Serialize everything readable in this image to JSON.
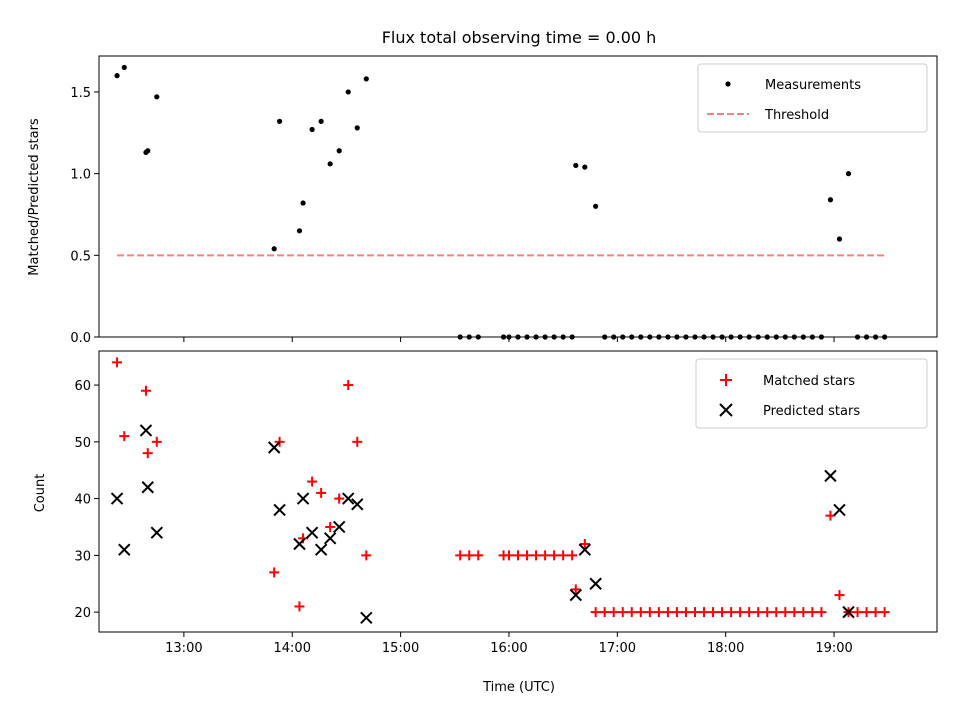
{
  "chart_data": [
    {
      "type": "scatter",
      "title": "Flux total observing time = 0.00 h",
      "xlabel": "",
      "ylabel": "Matched/Predicted stars",
      "xlim": [
        "12:13",
        "19:57"
      ],
      "ylim": [
        0,
        1.72
      ],
      "xticks": [
        "13:00",
        "14:00",
        "15:00",
        "16:00",
        "17:00",
        "18:00",
        "19:00"
      ],
      "yticks": [
        "0.0",
        "0.5",
        "1.0",
        "1.5"
      ],
      "legend": {
        "position": "top-right",
        "entries": [
          "Measurements",
          "Threshold"
        ]
      },
      "colors": {
        "measurements": "#000000",
        "threshold": "#ff7f7f"
      },
      "series": [
        {
          "name": "Measurements",
          "marker": "dot",
          "points": [
            [
              "12:23",
              1.6
            ],
            [
              "12:27",
              1.65
            ],
            [
              "12:39",
              1.13
            ],
            [
              "12:40",
              1.14
            ],
            [
              "12:45",
              1.47
            ],
            [
              "13:50",
              0.54
            ],
            [
              "13:53",
              1.32
            ],
            [
              "14:04",
              0.65
            ],
            [
              "14:06",
              0.82
            ],
            [
              "14:11",
              1.27
            ],
            [
              "14:16",
              1.32
            ],
            [
              "14:21",
              1.06
            ],
            [
              "14:26",
              1.14
            ],
            [
              "14:31",
              1.5
            ],
            [
              "14:36",
              1.28
            ],
            [
              "14:41",
              1.58
            ],
            [
              "15:33",
              0
            ],
            [
              "15:38",
              0
            ],
            [
              "15:43",
              0
            ],
            [
              "15:57",
              0
            ],
            [
              "16:00",
              0
            ],
            [
              "16:05",
              0
            ],
            [
              "16:10",
              0
            ],
            [
              "16:15",
              0
            ],
            [
              "16:20",
              0
            ],
            [
              "16:25",
              0
            ],
            [
              "16:30",
              0
            ],
            [
              "16:35",
              0
            ],
            [
              "16:37",
              1.05
            ],
            [
              "16:42",
              1.04
            ],
            [
              "16:48",
              0.8
            ],
            [
              "16:53",
              0
            ],
            [
              "16:58",
              0
            ],
            [
              "17:03",
              0
            ],
            [
              "17:08",
              0
            ],
            [
              "17:13",
              0
            ],
            [
              "17:18",
              0
            ],
            [
              "17:23",
              0
            ],
            [
              "17:28",
              0
            ],
            [
              "17:33",
              0
            ],
            [
              "17:38",
              0
            ],
            [
              "17:43",
              0
            ],
            [
              "17:48",
              0
            ],
            [
              "17:53",
              0
            ],
            [
              "17:58",
              0
            ],
            [
              "18:03",
              0
            ],
            [
              "18:08",
              0
            ],
            [
              "18:13",
              0
            ],
            [
              "18:18",
              0
            ],
            [
              "18:23",
              0
            ],
            [
              "18:28",
              0
            ],
            [
              "18:33",
              0
            ],
            [
              "18:38",
              0
            ],
            [
              "18:43",
              0
            ],
            [
              "18:48",
              0
            ],
            [
              "18:53",
              0
            ],
            [
              "18:58",
              0.84
            ],
            [
              "19:03",
              0.6
            ],
            [
              "19:08",
              1.0
            ],
            [
              "19:13",
              0
            ],
            [
              "19:18",
              0
            ],
            [
              "19:23",
              0
            ],
            [
              "19:28",
              0
            ]
          ]
        },
        {
          "name": "Threshold",
          "marker": "dashed-line",
          "points": [
            [
              "12:23",
              0.5
            ],
            [
              "19:28",
              0.5
            ]
          ]
        }
      ]
    },
    {
      "type": "scatter",
      "title": "",
      "xlabel": "Time (UTC)",
      "ylabel": "Count",
      "xlim": [
        "12:13",
        "19:57"
      ],
      "ylim": [
        16.5,
        66
      ],
      "xticks": [
        "13:00",
        "14:00",
        "15:00",
        "16:00",
        "17:00",
        "18:00",
        "19:00"
      ],
      "yticks": [
        "20",
        "30",
        "40",
        "50",
        "60"
      ],
      "legend": {
        "position": "top-right",
        "entries": [
          "Matched stars",
          "Predicted stars"
        ]
      },
      "colors": {
        "matched": "#ff0000",
        "predicted": "#000000"
      },
      "series": [
        {
          "name": "Matched stars",
          "marker": "plus",
          "points": [
            [
              "12:23",
              64
            ],
            [
              "12:27",
              51
            ],
            [
              "12:39",
              59
            ],
            [
              "12:40",
              48
            ],
            [
              "12:45",
              50
            ],
            [
              "13:50",
              27
            ],
            [
              "13:53",
              50
            ],
            [
              "14:04",
              21
            ],
            [
              "14:06",
              33
            ],
            [
              "14:11",
              43
            ],
            [
              "14:16",
              41
            ],
            [
              "14:21",
              35
            ],
            [
              "14:26",
              40
            ],
            [
              "14:31",
              60
            ],
            [
              "14:36",
              50
            ],
            [
              "14:41",
              30
            ],
            [
              "15:33",
              30
            ],
            [
              "15:38",
              30
            ],
            [
              "15:43",
              30
            ],
            [
              "15:57",
              30
            ],
            [
              "16:00",
              30
            ],
            [
              "16:05",
              30
            ],
            [
              "16:10",
              30
            ],
            [
              "16:15",
              30
            ],
            [
              "16:20",
              30
            ],
            [
              "16:25",
              30
            ],
            [
              "16:30",
              30
            ],
            [
              "16:35",
              30
            ],
            [
              "16:37",
              24
            ],
            [
              "16:42",
              32
            ],
            [
              "16:48",
              20
            ],
            [
              "16:53",
              20
            ],
            [
              "16:58",
              20
            ],
            [
              "17:03",
              20
            ],
            [
              "17:08",
              20
            ],
            [
              "17:13",
              20
            ],
            [
              "17:18",
              20
            ],
            [
              "17:23",
              20
            ],
            [
              "17:28",
              20
            ],
            [
              "17:33",
              20
            ],
            [
              "17:38",
              20
            ],
            [
              "17:43",
              20
            ],
            [
              "17:48",
              20
            ],
            [
              "17:53",
              20
            ],
            [
              "17:58",
              20
            ],
            [
              "18:03",
              20
            ],
            [
              "18:08",
              20
            ],
            [
              "18:13",
              20
            ],
            [
              "18:18",
              20
            ],
            [
              "18:23",
              20
            ],
            [
              "18:28",
              20
            ],
            [
              "18:33",
              20
            ],
            [
              "18:38",
              20
            ],
            [
              "18:43",
              20
            ],
            [
              "18:48",
              20
            ],
            [
              "18:53",
              20
            ],
            [
              "18:58",
              37
            ],
            [
              "19:03",
              23
            ],
            [
              "19:08",
              20
            ],
            [
              "19:13",
              20
            ],
            [
              "19:18",
              20
            ],
            [
              "19:23",
              20
            ],
            [
              "19:28",
              20
            ]
          ]
        },
        {
          "name": "Predicted stars",
          "marker": "x",
          "points": [
            [
              "12:23",
              40
            ],
            [
              "12:27",
              31
            ],
            [
              "12:39",
              52
            ],
            [
              "12:40",
              42
            ],
            [
              "12:45",
              34
            ],
            [
              "13:50",
              49
            ],
            [
              "13:53",
              38
            ],
            [
              "14:04",
              32
            ],
            [
              "14:06",
              40
            ],
            [
              "14:11",
              34
            ],
            [
              "14:16",
              31
            ],
            [
              "14:21",
              33
            ],
            [
              "14:26",
              35
            ],
            [
              "14:31",
              40
            ],
            [
              "14:36",
              39
            ],
            [
              "14:41",
              19
            ],
            [
              "16:37",
              23
            ],
            [
              "16:42",
              31
            ],
            [
              "16:48",
              25
            ],
            [
              "18:58",
              44
            ],
            [
              "19:03",
              38
            ],
            [
              "19:08",
              20
            ]
          ]
        }
      ]
    }
  ]
}
